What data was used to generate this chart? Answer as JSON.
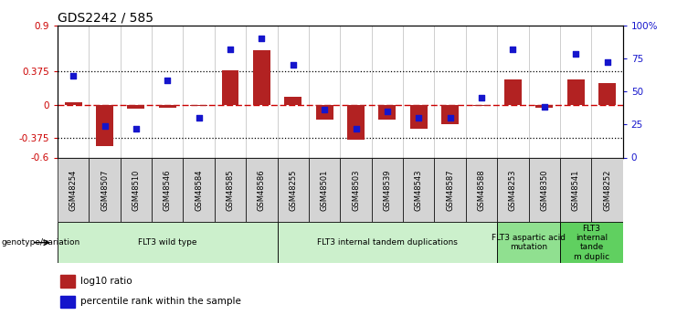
{
  "title": "GDS2242 / 585",
  "samples": [
    "GSM48254",
    "GSM48507",
    "GSM48510",
    "GSM48546",
    "GSM48584",
    "GSM48585",
    "GSM48586",
    "GSM48255",
    "GSM48501",
    "GSM48503",
    "GSM48539",
    "GSM48543",
    "GSM48587",
    "GSM48588",
    "GSM48253",
    "GSM48350",
    "GSM48541",
    "GSM48252"
  ],
  "log10_ratio": [
    0.03,
    -0.47,
    -0.05,
    -0.04,
    -0.01,
    0.385,
    0.62,
    0.09,
    -0.17,
    -0.4,
    -0.17,
    -0.27,
    -0.22,
    -0.01,
    0.28,
    -0.04,
    0.28,
    0.24
  ],
  "percentile_rank": [
    62,
    24,
    22,
    58,
    30,
    82,
    90,
    70,
    36,
    22,
    35,
    30,
    30,
    45,
    82,
    38,
    78,
    72
  ],
  "ylim_left": [
    -0.6,
    0.9
  ],
  "ylim_right": [
    0,
    100
  ],
  "hline_dotted": [
    0.375,
    -0.375
  ],
  "right_ticks": [
    0,
    25,
    50,
    75,
    100
  ],
  "right_tick_labels": [
    "0",
    "25",
    "50",
    "75",
    "100%"
  ],
  "left_ticks": [
    -0.6,
    -0.375,
    0,
    0.375,
    0.9
  ],
  "left_tick_labels": [
    "-0.6",
    "-0.375",
    "0",
    "0.375",
    "0.9"
  ],
  "bar_color": "#B22222",
  "dot_color": "#1515CC",
  "zero_line_color": "#CC0000",
  "dotted_line_color": "#000000",
  "groups": [
    {
      "label": "FLT3 wild type",
      "start": 0,
      "end": 6,
      "color": "#ccf0cc"
    },
    {
      "label": "FLT3 internal tandem duplications",
      "start": 7,
      "end": 13,
      "color": "#ccf0cc"
    },
    {
      "label": "FLT3 aspartic acid\nmutation",
      "start": 14,
      "end": 15,
      "color": "#90e090"
    },
    {
      "label": "FLT3\ninternal\ntande\nm duplic",
      "start": 16,
      "end": 17,
      "color": "#60d060"
    }
  ],
  "legend_items": [
    {
      "label": "log10 ratio",
      "color": "#B22222"
    },
    {
      "label": "percentile rank within the sample",
      "color": "#1515CC"
    }
  ],
  "genotype_label": "genotype/variation",
  "axis_label_color_left": "#CC0000",
  "axis_label_color_right": "#1515CC"
}
